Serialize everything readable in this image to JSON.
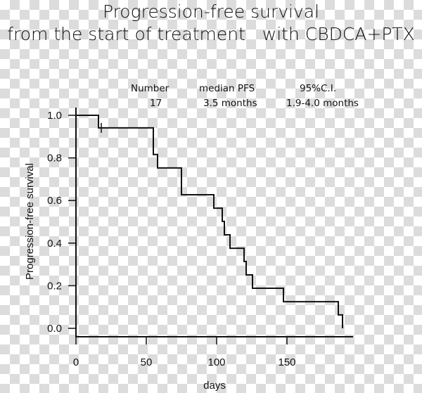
{
  "chart_data": {
    "type": "line",
    "title_lines": [
      "Progression-free survival",
      "from the start of treatment   with CBDCA+PTX"
    ],
    "xlabel": "days",
    "ylabel": "Progression-free survival",
    "xlim": [
      0,
      197
    ],
    "ylim": [
      0,
      1.0
    ],
    "xticks": [
      0,
      50,
      100,
      150
    ],
    "xtick_labels": [
      "0",
      "50",
      "100",
      "150"
    ],
    "yticks": [
      0.0,
      0.2,
      0.4,
      0.6,
      0.8,
      1.0
    ],
    "ytick_labels": [
      "0.0",
      "0.2",
      "0.4",
      "0.6",
      "0.8",
      "1.0"
    ],
    "grid": false,
    "series": [
      {
        "name": "CBDCA+PTX",
        "step": true,
        "x": [
          0,
          16,
          55,
          58,
          75,
          98,
          104,
          105.5,
          109.5,
          119.5,
          121,
          125.5,
          147.5,
          186.5,
          189.5
        ],
        "y": [
          1.0,
          0.941,
          0.816,
          0.753,
          0.627,
          0.564,
          0.502,
          0.439,
          0.376,
          0.314,
          0.251,
          0.188,
          0.125,
          0.063,
          0.0
        ],
        "censored": [
          {
            "x": 18,
            "y": 0.941
          }
        ]
      }
    ],
    "annotation": {
      "headers": [
        "Number",
        "median PFS",
        "95%C.I."
      ],
      "values": [
        "17",
        "3.5 months",
        "1.9-4.0 months"
      ]
    }
  }
}
